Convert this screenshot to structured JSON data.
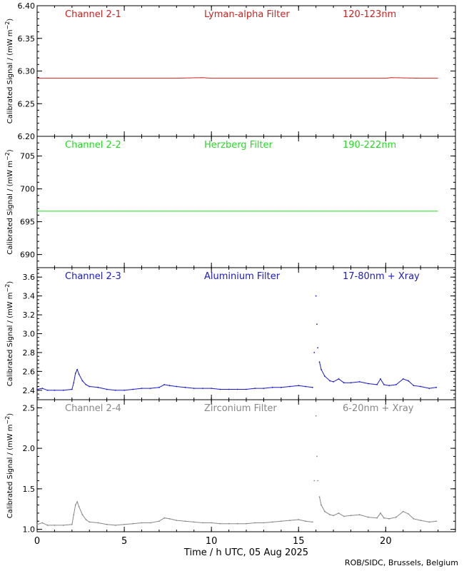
{
  "colors": {
    "red": "#cc2222",
    "green": "#22dd22",
    "blue": "#1a1acc",
    "gray": "#888888",
    "axis": "#000000"
  },
  "xaxis": {
    "label": "Time / h UTC, 05 Aug 2025",
    "xlim": [
      0,
      24
    ],
    "ticks": [
      0,
      5,
      10,
      15,
      20
    ],
    "tick_labels": [
      "0",
      "5",
      "10",
      "15",
      "20"
    ]
  },
  "credit": "ROB/SIDC, Brussels, Belgium",
  "chart_data": [
    {
      "type": "line",
      "channel": "Channel 2-1",
      "filter": "Lyman-alpha Filter",
      "band": "120-123nm",
      "color": "#cc2222",
      "ylabel": "Calibrated Signal / (mW m",
      "ylim": [
        6.2,
        6.4
      ],
      "yticks": [
        6.2,
        6.25,
        6.3,
        6.35,
        6.4
      ],
      "ytick_labels": [
        "6.20",
        "6.25",
        "6.30",
        "6.35",
        "6.40"
      ],
      "x": [
        0,
        2,
        4,
        6,
        8,
        9.5,
        10,
        12,
        14,
        16,
        18,
        20,
        20.3,
        22,
        23
      ],
      "y": [
        6.289,
        6.289,
        6.289,
        6.289,
        6.289,
        6.29,
        6.289,
        6.289,
        6.289,
        6.289,
        6.289,
        6.289,
        6.29,
        6.289,
        6.289
      ]
    },
    {
      "type": "line",
      "channel": "Channel 2-2",
      "filter": "Herzberg Filter",
      "band": "190-222nm",
      "color": "#22dd22",
      "ylabel": "Calibrated Signal / (mW m",
      "ylim": [
        688,
        708
      ],
      "yticks": [
        690,
        695,
        700,
        705
      ],
      "ytick_labels": [
        "690",
        "695",
        "700",
        "705"
      ],
      "x": [
        0,
        4,
        8,
        12,
        16,
        20,
        23
      ],
      "y": [
        696.6,
        696.6,
        696.6,
        696.6,
        696.6,
        696.6,
        696.6
      ]
    },
    {
      "type": "scatter",
      "channel": "Channel 2-3",
      "filter": "Aluminium Filter",
      "band": "17-80nm + Xray",
      "color": "#1a1acc",
      "ylabel": "Calibrated Signal / (mW m",
      "ylim": [
        2.3,
        3.7
      ],
      "yticks": [
        2.4,
        2.6,
        2.8,
        3.0,
        3.2,
        3.4,
        3.6
      ],
      "ytick_labels": [
        "2.4",
        "2.6",
        "2.8",
        "3.0",
        "3.2",
        "3.4",
        "3.6"
      ],
      "x": [
        0.0,
        0.3,
        0.6,
        1.0,
        1.5,
        2.0,
        2.1,
        2.2,
        2.3,
        2.4,
        2.6,
        2.8,
        3.0,
        3.5,
        4.0,
        4.5,
        5.0,
        5.5,
        6.0,
        6.5,
        7.0,
        7.3,
        7.6,
        8.0,
        8.5,
        9.0,
        9.5,
        10.0,
        10.5,
        11.0,
        11.5,
        12.0,
        12.5,
        13.0,
        13.5,
        14.0,
        14.5,
        15.0,
        15.4,
        15.8,
        15.9,
        16.0,
        16.05,
        16.1,
        16.2,
        16.3,
        16.5,
        16.8,
        17.0,
        17.3,
        17.6,
        18.0,
        18.5,
        19.0,
        19.5,
        19.7,
        19.9,
        20.2,
        20.6,
        21.0,
        21.3,
        21.6,
        22.0,
        22.5,
        22.9
      ],
      "y": [
        2.41,
        2.42,
        2.4,
        2.4,
        2.4,
        2.41,
        2.48,
        2.58,
        2.62,
        2.57,
        2.5,
        2.46,
        2.44,
        2.43,
        2.41,
        2.4,
        2.4,
        2.41,
        2.42,
        2.42,
        2.43,
        2.46,
        2.45,
        2.44,
        2.43,
        2.42,
        2.42,
        2.42,
        2.41,
        2.41,
        2.41,
        2.41,
        2.42,
        2.42,
        2.43,
        2.43,
        2.44,
        2.45,
        2.44,
        2.43,
        2.8,
        3.4,
        3.1,
        2.85,
        2.7,
        2.62,
        2.55,
        2.5,
        2.49,
        2.52,
        2.48,
        2.48,
        2.49,
        2.47,
        2.46,
        2.52,
        2.46,
        2.45,
        2.46,
        2.52,
        2.5,
        2.45,
        2.44,
        2.42,
        2.43
      ]
    },
    {
      "type": "scatter",
      "channel": "Channel 2-4",
      "filter": "Zirconium Filter",
      "band": "6-20nm + Xray",
      "color": "#888888",
      "ylabel": "Calibrated Signal / (mW m",
      "ylim": [
        0.97,
        2.6
      ],
      "yticks": [
        1.0,
        1.5,
        2.0,
        2.5
      ],
      "ytick_labels": [
        "1.0",
        "1.5",
        "2.0",
        "2.5"
      ],
      "x": [
        0.0,
        0.3,
        0.6,
        1.0,
        1.5,
        2.0,
        2.1,
        2.2,
        2.3,
        2.4,
        2.6,
        2.8,
        3.0,
        3.5,
        4.0,
        4.5,
        5.0,
        5.5,
        6.0,
        6.5,
        7.0,
        7.3,
        7.6,
        8.0,
        8.5,
        9.0,
        9.5,
        10.0,
        10.5,
        11.0,
        11.5,
        12.0,
        12.5,
        13.0,
        13.5,
        14.0,
        14.5,
        15.0,
        15.4,
        15.8,
        15.9,
        16.0,
        16.05,
        16.1,
        16.2,
        16.3,
        16.5,
        16.8,
        17.0,
        17.3,
        17.6,
        18.0,
        18.5,
        19.0,
        19.5,
        19.7,
        19.9,
        20.2,
        20.6,
        21.0,
        21.3,
        21.6,
        22.0,
        22.5,
        22.9
      ],
      "y": [
        1.06,
        1.08,
        1.05,
        1.05,
        1.05,
        1.06,
        1.18,
        1.3,
        1.34,
        1.28,
        1.18,
        1.12,
        1.09,
        1.08,
        1.06,
        1.05,
        1.06,
        1.07,
        1.08,
        1.08,
        1.1,
        1.14,
        1.13,
        1.11,
        1.1,
        1.09,
        1.08,
        1.08,
        1.07,
        1.07,
        1.07,
        1.07,
        1.08,
        1.08,
        1.09,
        1.1,
        1.11,
        1.12,
        1.1,
        1.09,
        1.6,
        2.4,
        1.9,
        1.6,
        1.4,
        1.3,
        1.22,
        1.18,
        1.17,
        1.2,
        1.16,
        1.17,
        1.18,
        1.15,
        1.14,
        1.2,
        1.14,
        1.13,
        1.15,
        1.22,
        1.19,
        1.13,
        1.11,
        1.09,
        1.1
      ]
    }
  ]
}
